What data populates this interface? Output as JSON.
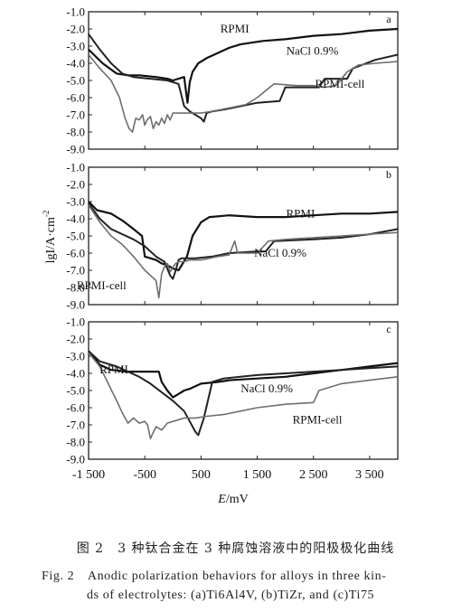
{
  "chart_data": {
    "type": "line",
    "xlabel": "E/mV",
    "ylabel": "lg I/A·cm⁻²",
    "ylabel_prefix": "lgI/A·cm",
    "ylabel_sup": "-2",
    "x_ticks": [
      {
        "v": -1500,
        "label": "-1 500"
      },
      {
        "v": -500,
        "label": "-500"
      },
      {
        "v": 500,
        "label": "500"
      },
      {
        "v": 1500,
        "label": "1 500"
      },
      {
        "v": 2500,
        "label": "2 500"
      },
      {
        "v": 3500,
        "label": "3 500"
      }
    ],
    "xlim": [
      -1500,
      4000
    ],
    "ylim": [
      -9.0,
      -1.0
    ],
    "y_ticks": [
      {
        "v": -1.0,
        "label": "-1.0"
      },
      {
        "v": -2.0,
        "label": "-2.0"
      },
      {
        "v": -3.0,
        "label": "-3.0"
      },
      {
        "v": -4.0,
        "label": "-4.0"
      },
      {
        "v": -5.0,
        "label": "-5.0"
      },
      {
        "v": -6.0,
        "label": "-6.0"
      },
      {
        "v": -7.0,
        "label": "-7.0"
      },
      {
        "v": -8.0,
        "label": "-8.0"
      },
      {
        "v": -9.0,
        "label": "-9.0"
      }
    ],
    "panels": [
      {
        "letter": "a",
        "labels": [
          {
            "text": "RPMI",
            "x": 1100,
            "y": -2.0
          },
          {
            "text": "NaCl 0.9%",
            "x": 2480,
            "y": -3.3
          },
          {
            "text": "RPMI-cell",
            "x": 2970,
            "y": -5.2
          }
        ],
        "series": [
          {
            "name": "RPMI",
            "color": "#111111",
            "width": 2.2,
            "x": [
              -1500,
              -1250,
              -1000,
              -800,
              -600,
              -300,
              -100,
              0,
              100,
              200,
              260,
              300,
              350,
              450,
              600,
              800,
              1000,
              1200,
              1600,
              2000,
              2500,
              3000,
              3500,
              4000
            ],
            "y": [
              -3.2,
              -4.0,
              -4.6,
              -4.7,
              -4.7,
              -4.8,
              -4.9,
              -5.0,
              -4.9,
              -4.8,
              -6.3,
              -5.1,
              -4.5,
              -4.0,
              -3.7,
              -3.4,
              -3.1,
              -2.9,
              -2.7,
              -2.6,
              -2.4,
              -2.3,
              -2.1,
              -2.0
            ]
          },
          {
            "name": "NaCl 0.9%",
            "color": "#222222",
            "width": 2.0,
            "x": [
              -1500,
              -1300,
              -1100,
              -900,
              -700,
              -400,
              -100,
              100,
              200,
              300,
              400,
              500,
              550,
              600,
              700,
              900,
              1200,
              1500,
              1900,
              2000,
              2600,
              2700,
              3100,
              3200,
              3600,
              4000
            ],
            "y": [
              -2.3,
              -3.2,
              -4.0,
              -4.6,
              -4.8,
              -4.9,
              -5.0,
              -5.2,
              -6.5,
              -6.8,
              -7.0,
              -7.2,
              -7.4,
              -6.9,
              -6.8,
              -6.7,
              -6.5,
              -6.3,
              -6.2,
              -5.4,
              -5.4,
              -4.9,
              -4.9,
              -4.3,
              -3.8,
              -3.5
            ]
          },
          {
            "name": "RPMI-cell",
            "color": "#6e6e6e",
            "width": 1.6,
            "x": [
              -1500,
              -1300,
              -1100,
              -950,
              -850,
              -780,
              -720,
              -660,
              -600,
              -540,
              -500,
              -460,
              -400,
              -350,
              -300,
              -250,
              -200,
              -150,
              -100,
              -50,
              0,
              100,
              200,
              300,
              400,
              500,
              700,
              1000,
              1300,
              1500,
              1800,
              2200,
              2500,
              2700,
              2900,
              3100,
              3300,
              3600,
              4000
            ],
            "y": [
              -3.5,
              -4.3,
              -5.0,
              -6.0,
              -7.2,
              -7.8,
              -8.0,
              -7.2,
              -7.3,
              -7.0,
              -7.6,
              -7.3,
              -7.1,
              -7.8,
              -7.4,
              -7.6,
              -7.2,
              -7.5,
              -7.0,
              -7.3,
              -6.9,
              -6.9,
              -6.9,
              -6.9,
              -6.9,
              -6.9,
              -6.8,
              -6.6,
              -6.4,
              -6.0,
              -5.2,
              -5.3,
              -5.3,
              -5.4,
              -5.3,
              -4.5,
              -4.1,
              -4.0,
              -3.9
            ]
          }
        ]
      },
      {
        "letter": "b",
        "labels": [
          {
            "text": "RPMI",
            "x": 2270,
            "y": -3.7
          },
          {
            "text": "NaCl 0.9%",
            "x": 1910,
            "y": -6.0
          },
          {
            "text": "RPMI-cell",
            "x": -1270,
            "y": -7.9
          }
        ],
        "series": [
          {
            "name": "RPMI",
            "color": "#111111",
            "width": 2.2,
            "x": [
              -1500,
              -1350,
              -1100,
              -900,
              -700,
              -550,
              -500,
              -300,
              -200,
              -100,
              0,
              100,
              250,
              350,
              500,
              650,
              1000,
              1500,
              2000,
              2500,
              3000,
              3500,
              4000
            ],
            "y": [
              -3.0,
              -3.5,
              -3.7,
              -4.1,
              -4.6,
              -5.0,
              -6.2,
              -6.4,
              -6.6,
              -6.7,
              -6.9,
              -7.0,
              -6.2,
              -5.0,
              -4.2,
              -3.9,
              -3.8,
              -3.9,
              -3.9,
              -3.8,
              -3.7,
              -3.7,
              -3.6
            ]
          },
          {
            "name": "NaCl 0.9%",
            "color": "#222222",
            "width": 2.0,
            "x": [
              -1500,
              -1300,
              -1100,
              -900,
              -700,
              -500,
              -300,
              -150,
              -50,
              0,
              50,
              100,
              150,
              250,
              400,
              700,
              1000,
              1500,
              1650,
              1800,
              2500,
              3000,
              3500,
              4000
            ],
            "y": [
              -3.1,
              -4.0,
              -4.6,
              -4.9,
              -5.2,
              -5.6,
              -6.2,
              -6.5,
              -7.3,
              -7.5,
              -7.0,
              -6.4,
              -6.3,
              -6.3,
              -6.3,
              -6.2,
              -6.0,
              -5.9,
              -5.9,
              -5.3,
              -5.2,
              -5.1,
              -4.9,
              -4.6
            ]
          },
          {
            "name": "RPMI-cell",
            "color": "#6e6e6e",
            "width": 1.6,
            "x": [
              -1500,
              -1300,
              -1100,
              -900,
              -700,
              -500,
              -400,
              -300,
              -250,
              -200,
              -150,
              -100,
              -50,
              0,
              50,
              100,
              200,
              300,
              500,
              800,
              1000,
              1100,
              1150,
              1300,
              1500,
              1700,
              2000,
              2500,
              3000,
              3500,
              4000
            ],
            "y": [
              -3.2,
              -4.2,
              -5.0,
              -5.5,
              -6.2,
              -7.0,
              -7.3,
              -7.6,
              -8.6,
              -7.2,
              -6.8,
              -6.6,
              -7.1,
              -6.8,
              -6.6,
              -6.5,
              -6.5,
              -6.4,
              -6.4,
              -6.2,
              -6.1,
              -5.3,
              -6.0,
              -6.0,
              -6.0,
              -5.3,
              -5.2,
              -5.1,
              -5.0,
              -4.9,
              -4.8
            ]
          }
        ]
      },
      {
        "letter": "c",
        "labels": [
          {
            "text": "RPMI",
            "x": -1050,
            "y": -3.8
          },
          {
            "text": "NaCl 0.9%",
            "x": 1670,
            "y": -4.9
          },
          {
            "text": "RPMI-cell",
            "x": 2570,
            "y": -6.7
          }
        ],
        "series": [
          {
            "name": "RPMI",
            "color": "#111111",
            "width": 2.2,
            "x": [
              -1500,
              -1300,
              -1100,
              -800,
              -600,
              -400,
              -250,
              -200,
              -100,
              0,
              100,
              200,
              300,
              500,
              800,
              1000,
              1500,
              2000,
              2500,
              3000,
              3500,
              4000
            ],
            "y": [
              -2.7,
              -3.5,
              -3.8,
              -3.9,
              -3.9,
              -3.9,
              -3.9,
              -4.5,
              -5.0,
              -5.4,
              -5.2,
              -5.0,
              -4.9,
              -4.6,
              -4.5,
              -4.4,
              -4.3,
              -4.2,
              -4.0,
              -3.8,
              -3.6,
              -3.4
            ]
          },
          {
            "name": "NaCl 0.9%",
            "color": "#222222",
            "width": 2.0,
            "x": [
              -1500,
              -1300,
              -1000,
              -800,
              -600,
              -400,
              -200,
              0,
              200,
              300,
              400,
              450,
              550,
              700,
              900,
              1200,
              1500,
              2000,
              2500,
              3000,
              3500,
              4000
            ],
            "y": [
              -2.7,
              -3.3,
              -3.6,
              -3.9,
              -4.2,
              -4.6,
              -5.1,
              -5.6,
              -6.2,
              -6.8,
              -7.4,
              -7.6,
              -6.6,
              -4.5,
              -4.3,
              -4.2,
              -4.1,
              -4.0,
              -3.9,
              -3.8,
              -3.7,
              -3.6
            ]
          },
          {
            "name": "RPMI-cell",
            "color": "#6e6e6e",
            "width": 1.6,
            "x": [
              -1500,
              -1300,
              -1150,
              -1000,
              -900,
              -800,
              -700,
              -600,
              -500,
              -450,
              -400,
              -300,
              -200,
              -100,
              0,
              100,
              200,
              400,
              600,
              900,
              1200,
              1500,
              2000,
              2500,
              2600,
              3000,
              3500,
              4000
            ],
            "y": [
              -2.8,
              -3.6,
              -4.6,
              -5.6,
              -6.3,
              -6.9,
              -6.6,
              -6.9,
              -6.8,
              -7.0,
              -7.8,
              -7.1,
              -7.3,
              -6.9,
              -6.8,
              -6.7,
              -6.6,
              -6.6,
              -6.5,
              -6.4,
              -6.2,
              -6.0,
              -5.8,
              -5.7,
              -5.0,
              -4.6,
              -4.4,
              -4.2
            ]
          }
        ]
      }
    ]
  },
  "caption": {
    "cn": "图 2　3 种钛合金在 3 种腐蚀溶液中的阳极极化曲线",
    "en_line1": "Fig. 2　Anodic polarization behaviors for alloys in three kin-",
    "en_line2": "ds of electrolytes: (a)Ti6Al4V, (b)TiZr, and (c)Ti75"
  }
}
